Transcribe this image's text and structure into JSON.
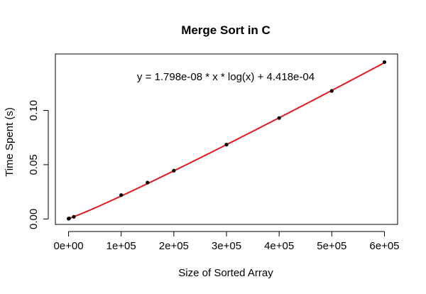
{
  "chart_data": {
    "type": "scatter",
    "title": "Merge Sort in  C",
    "xlabel": "Size of Sorted Array",
    "ylabel": "Time Spent (s)",
    "xlim": [
      -25000,
      625000
    ],
    "ylim": [
      -0.005,
      0.152
    ],
    "xticks": [
      0,
      100000,
      200000,
      300000,
      400000,
      500000,
      600000
    ],
    "xtick_labels": [
      "0e+00",
      "1e+05",
      "2e+05",
      "3e+05",
      "4e+05",
      "5e+05",
      "6e+05"
    ],
    "yticks": [
      0.0,
      0.05,
      0.1
    ],
    "ytick_labels": [
      "0.00",
      "0.05",
      "0.10"
    ],
    "grid": false,
    "annotation": "y = 1.798e-08 * x * log(x) + 4.418e-04",
    "series": [
      {
        "type": "scatter",
        "x": [
          100,
          1000,
          10000,
          100000,
          150000,
          200000,
          300000,
          400000,
          500000,
          600000
        ],
        "y": [
          0.0003,
          0.0005,
          0.002,
          0.022,
          0.0335,
          0.0445,
          0.0685,
          0.093,
          0.118,
          0.1445
        ]
      },
      {
        "type": "fit-line",
        "formula": "y = 1.798e-08 * x * log(x) + 4.418e-04",
        "coef_a": 1.798e-08,
        "coef_b": 0.0004418
      }
    ],
    "colors": {
      "points": "#000000",
      "fit_line": "#e31a1c"
    }
  }
}
